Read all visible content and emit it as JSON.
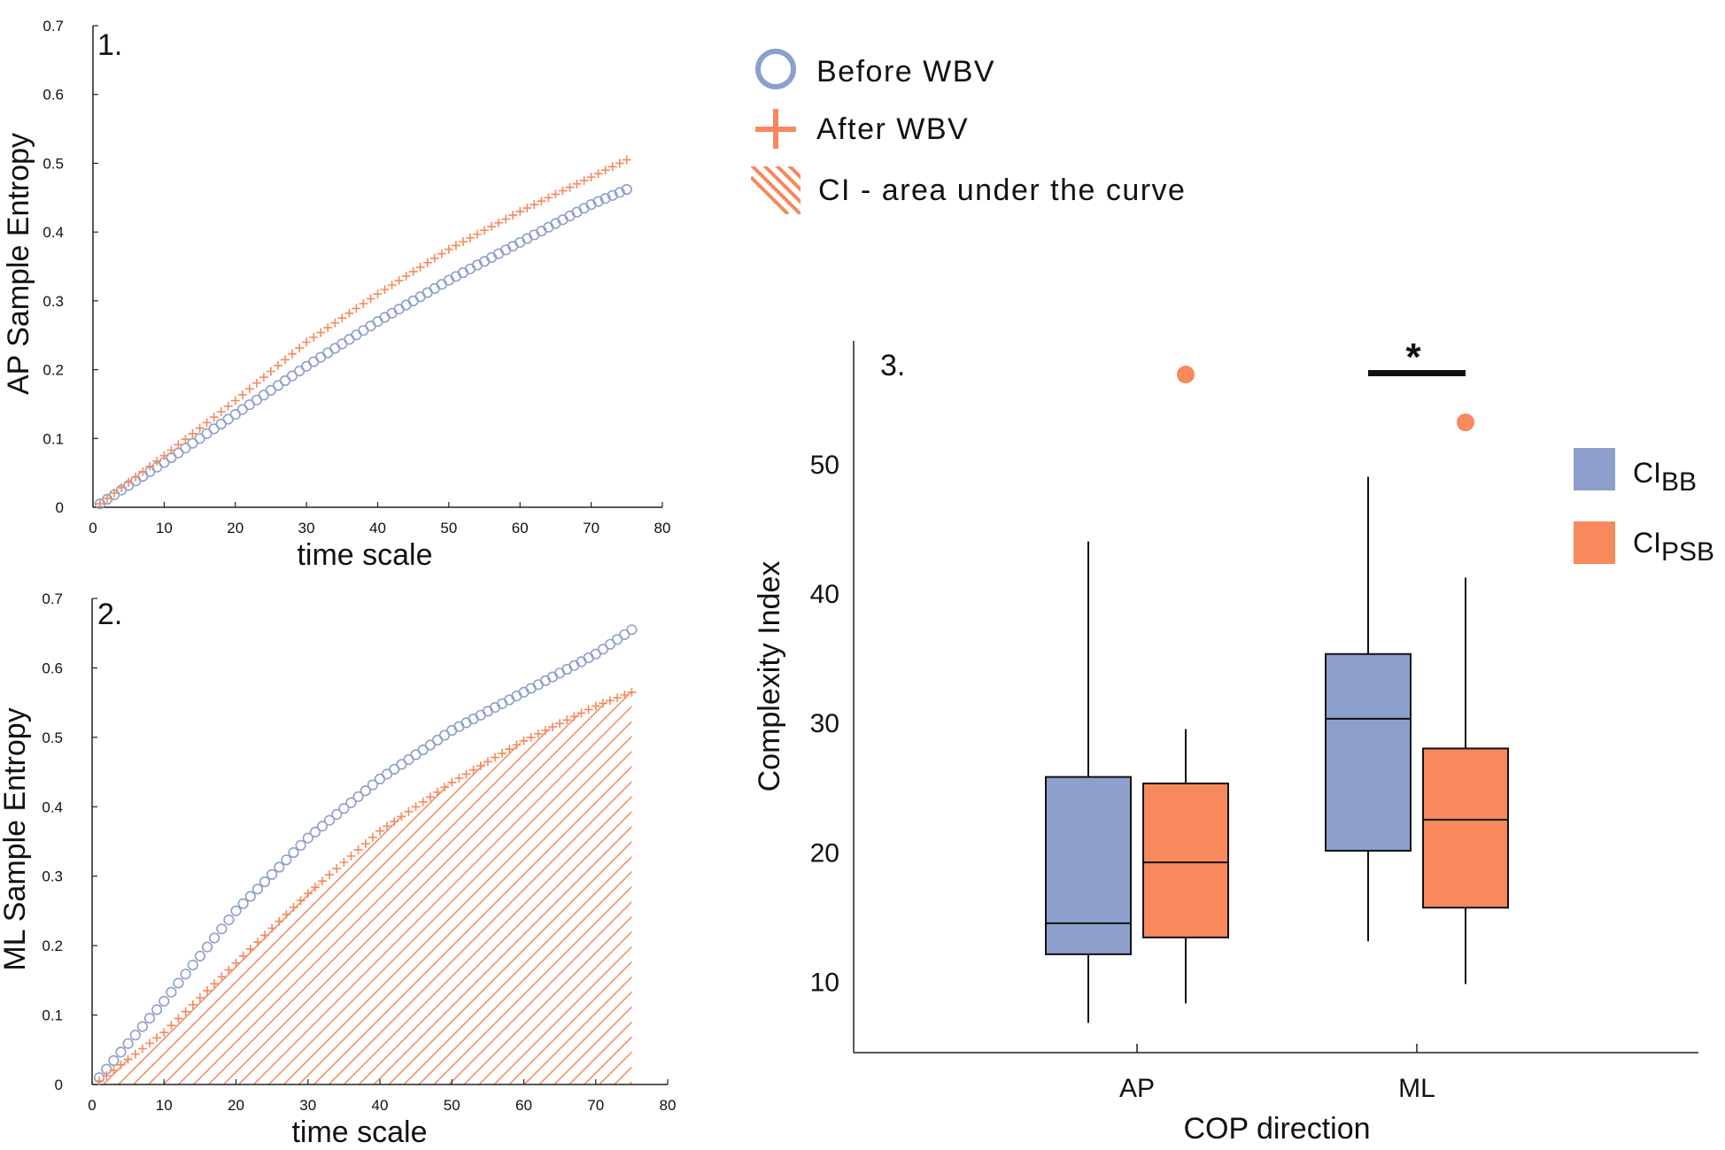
{
  "colors": {
    "before": "#8d9fcc",
    "after": "#f7895d",
    "ci_bb": "#8d9fcc",
    "ci_psb": "#f7895d"
  },
  "legend": {
    "items": [
      {
        "marker": "circle-icon",
        "label": "Before WBV"
      },
      {
        "marker": "plus-icon",
        "label": "After WBV"
      },
      {
        "marker": "hatch-icon",
        "label": "CI  - area under the curve"
      }
    ]
  },
  "chart_data": [
    {
      "panel_label": "1.",
      "type": "scatter",
      "xlabel": "time scale",
      "ylabel": "AP Sample Entropy",
      "xlim": [
        0,
        80
      ],
      "ylim": [
        0,
        0.7
      ],
      "xticks": [
        "0",
        "10",
        "20",
        "30",
        "40",
        "50",
        "60",
        "70",
        "80"
      ],
      "yticks": [
        "0",
        "0.1",
        "0.2",
        "0.3",
        "0.4",
        "0.5",
        "0.6",
        "0.7"
      ],
      "x": {
        "start": 1,
        "end": 75,
        "step": 1
      },
      "series": [
        {
          "key": "before",
          "marker": "circle",
          "points": [
            [
              1,
              0.005
            ],
            [
              10,
              0.065
            ],
            [
              20,
              0.135
            ],
            [
              30,
              0.205
            ],
            [
              40,
              0.27
            ],
            [
              50,
              0.33
            ],
            [
              60,
              0.385
            ],
            [
              70,
              0.44
            ],
            [
              75,
              0.462
            ]
          ]
        },
        {
          "key": "after",
          "marker": "plus",
          "points": [
            [
              1,
              0.005
            ],
            [
              10,
              0.075
            ],
            [
              20,
              0.155
            ],
            [
              30,
              0.24
            ],
            [
              40,
              0.31
            ],
            [
              50,
              0.375
            ],
            [
              60,
              0.43
            ],
            [
              70,
              0.48
            ],
            [
              75,
              0.505
            ]
          ]
        }
      ]
    },
    {
      "panel_label": "2.",
      "type": "scatter",
      "xlabel": "time scale",
      "ylabel": "ML Sample Entropy",
      "xlim": [
        0,
        80
      ],
      "ylim": [
        0,
        0.7
      ],
      "xticks": [
        "0",
        "10",
        "20",
        "30",
        "40",
        "50",
        "60",
        "70",
        "80"
      ],
      "yticks": [
        "0",
        "0.1",
        "0.2",
        "0.3",
        "0.4",
        "0.5",
        "0.6",
        "0.7"
      ],
      "x": {
        "start": 1,
        "end": 75,
        "step": 1
      },
      "hatched_series": "after",
      "series": [
        {
          "key": "before",
          "marker": "circle",
          "points": [
            [
              1,
              0.01
            ],
            [
              10,
              0.12
            ],
            [
              20,
              0.25
            ],
            [
              30,
              0.355
            ],
            [
              40,
              0.44
            ],
            [
              50,
              0.51
            ],
            [
              60,
              0.565
            ],
            [
              70,
              0.62
            ],
            [
              75,
              0.655
            ]
          ]
        },
        {
          "key": "after",
          "marker": "plus",
          "points": [
            [
              1,
              0.005
            ],
            [
              10,
              0.075
            ],
            [
              20,
              0.175
            ],
            [
              30,
              0.275
            ],
            [
              40,
              0.365
            ],
            [
              50,
              0.435
            ],
            [
              60,
              0.495
            ],
            [
              70,
              0.545
            ],
            [
              75,
              0.565
            ]
          ]
        }
      ]
    },
    {
      "panel_label": "3.",
      "type": "box",
      "xlabel": "COP direction",
      "ylabel": "Complexity Index",
      "ylim": [
        4.5,
        59.5
      ],
      "yticks": [
        10,
        20,
        30,
        40,
        50
      ],
      "categories": [
        "AP",
        "ML"
      ],
      "legend": [
        {
          "key": "ci_bb",
          "label": "CI",
          "sub": "BB"
        },
        {
          "key": "ci_psb",
          "label": "CI",
          "sub": "PSB"
        }
      ],
      "significance": {
        "category": "ML",
        "symbol": "*",
        "y": 57
      },
      "boxes": [
        {
          "category": "AP",
          "group": "ci_bb",
          "whisker_low": 6.8,
          "q1": 12.1,
          "median": 14.5,
          "q3": 25.8,
          "whisker_high": 44
        },
        {
          "category": "AP",
          "group": "ci_psb",
          "whisker_low": 8.3,
          "q1": 13.4,
          "median": 19.2,
          "q3": 25.3,
          "whisker_high": 29.5,
          "outliers": [
            56.9
          ]
        },
        {
          "category": "ML",
          "group": "ci_bb",
          "whisker_low": 13.1,
          "q1": 20.1,
          "median": 30.3,
          "q3": 35.3,
          "whisker_high": 49
        },
        {
          "category": "ML",
          "group": "ci_psb",
          "whisker_low": 9.8,
          "q1": 15.7,
          "median": 22.5,
          "q3": 28,
          "whisker_high": 41.2,
          "outliers": [
            53.2
          ]
        }
      ]
    }
  ]
}
